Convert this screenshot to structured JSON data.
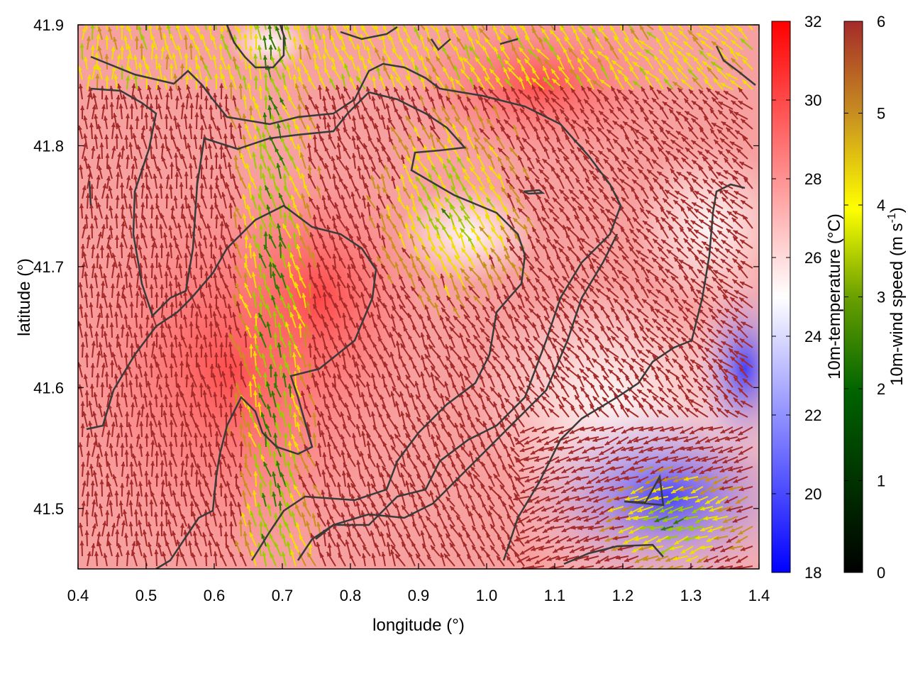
{
  "chart_data": {
    "type": "heatmap",
    "description_layers": [
      "temperature field (color)",
      "wind vectors (arrows colored by speed)",
      "contour lines"
    ],
    "xlabel": "longitude (°)",
    "ylabel": "latitude (°)",
    "xlim": [
      0.4,
      1.4
    ],
    "ylim": [
      41.45,
      41.9
    ],
    "x_ticks": [
      "0.4",
      "0.5",
      "0.6",
      "0.7",
      "0.8",
      "0.9",
      "1.0",
      "1.1",
      "1.2",
      "1.3",
      "1.4"
    ],
    "x_tick_values": [
      0.4,
      0.5,
      0.6,
      0.7,
      0.8,
      0.9,
      1.0,
      1.1,
      1.2,
      1.3,
      1.4
    ],
    "y_ticks": [
      "41.5",
      "41.6",
      "41.7",
      "41.8",
      "41.9"
    ],
    "y_tick_values": [
      41.5,
      41.6,
      41.7,
      41.8,
      41.9
    ],
    "temperature_colorbar": {
      "label": "10m-temperature (°C)",
      "range": [
        18,
        32
      ],
      "ticks": [
        "18",
        "20",
        "22",
        "24",
        "26",
        "28",
        "30",
        "32"
      ],
      "tick_values": [
        18,
        20,
        22,
        24,
        26,
        28,
        30,
        32
      ],
      "colors": [
        "#0000ff",
        "#ffffff",
        "#ff0000"
      ]
    },
    "wind_colorbar": {
      "label_main": "10m-wind speed (m s",
      "label_sup": "-1",
      "label_end": ")",
      "range": [
        0,
        6
      ],
      "ticks": [
        "0",
        "1",
        "2",
        "3",
        "4",
        "5",
        "6"
      ],
      "tick_values": [
        0,
        1,
        2,
        3,
        4,
        5,
        6
      ],
      "colors": [
        "#000000",
        "#006400",
        "#ffff00",
        "#c8a020",
        "#a52a2a"
      ]
    },
    "grid": false
  }
}
